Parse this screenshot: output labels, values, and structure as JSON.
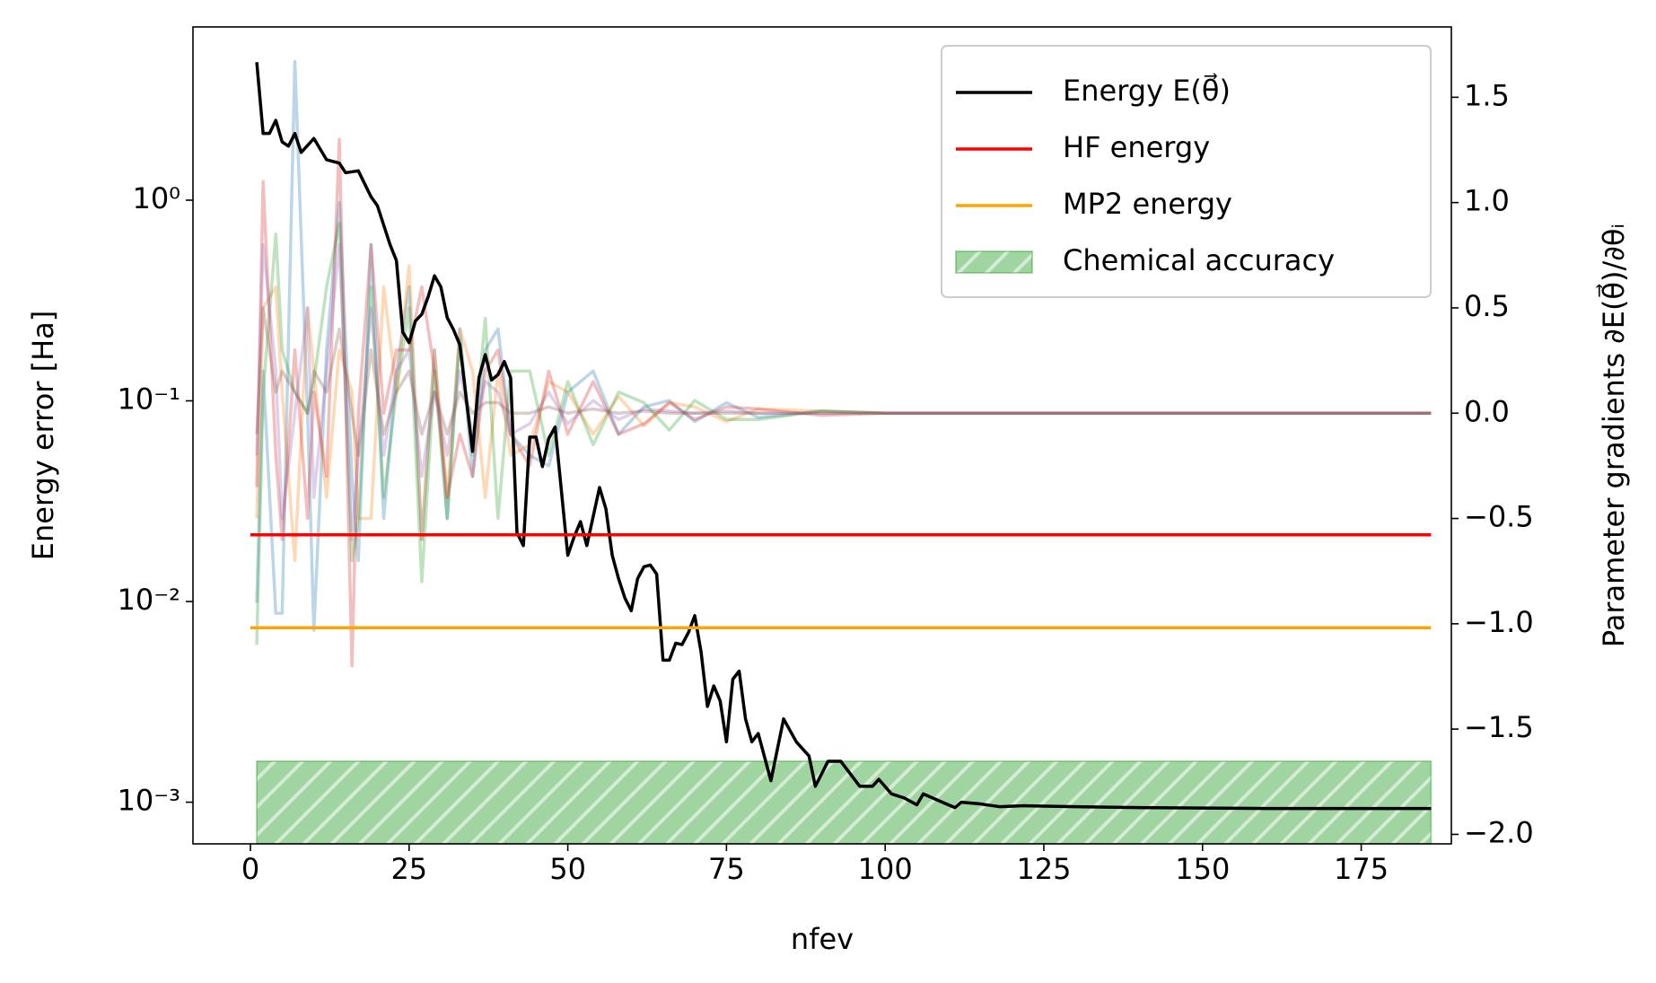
{
  "chart_data": {
    "type": "line",
    "xlabel": "nfev",
    "ylabel": "Energy error [Ha]",
    "y2label": "Parameter gradients ∂E(θ⃗)/∂θᵢ",
    "yscale": "log",
    "xlim": [
      -9.05,
      189.2
    ],
    "ylim": [
      0.00062,
      7.3
    ],
    "y2lim": [
      -2.045,
      1.834
    ],
    "xticks": [
      0,
      25,
      50,
      75,
      100,
      125,
      150,
      175
    ],
    "yticks": [
      {
        "value": 0.001,
        "label": "10⁻³"
      },
      {
        "value": 0.01,
        "label": "10⁻²"
      },
      {
        "value": 0.1,
        "label": "10⁻¹"
      },
      {
        "value": 1,
        "label": "10⁰"
      }
    ],
    "y2ticks": [
      {
        "value": -2.0,
        "label": "−2.0"
      },
      {
        "value": -1.5,
        "label": "−1.5"
      },
      {
        "value": -1.0,
        "label": "−1.0"
      },
      {
        "value": -0.5,
        "label": "−0.5"
      },
      {
        "value": 0.0,
        "label": "0.0"
      },
      {
        "value": 0.5,
        "label": "0.5"
      },
      {
        "value": 1.0,
        "label": "1.0"
      },
      {
        "value": 1.5,
        "label": "1.5"
      }
    ],
    "legend": "upper right",
    "series": [
      {
        "name": "Energy E(θ⃗)",
        "color": "#000000",
        "x": [
          1,
          2,
          3,
          4,
          5,
          6,
          7,
          8,
          10,
          12,
          14,
          15,
          17,
          19,
          20,
          22,
          23,
          24,
          25,
          26,
          27,
          28,
          29,
          30,
          31,
          32,
          33,
          35,
          36,
          37,
          38,
          39,
          40,
          41,
          42,
          43,
          44,
          45,
          46,
          47,
          48,
          50,
          51,
          52,
          53,
          55,
          56,
          57,
          58,
          59,
          60,
          61,
          62,
          63,
          64,
          65,
          66,
          67,
          68,
          69,
          70,
          71,
          72,
          73,
          74,
          75,
          76,
          77,
          78,
          79,
          80,
          82,
          84,
          86,
          88,
          89,
          91,
          93,
          96,
          98,
          99,
          101,
          103,
          105,
          106,
          109,
          111,
          112,
          115,
          118,
          122,
          130,
          140,
          160,
          186
        ],
        "values": [
          4.87,
          2.15,
          2.15,
          2.5,
          1.95,
          1.86,
          2.15,
          1.73,
          2.03,
          1.59,
          1.53,
          1.37,
          1.4,
          1.04,
          0.94,
          0.6,
          0.5,
          0.22,
          0.195,
          0.25,
          0.27,
          0.33,
          0.42,
          0.37,
          0.26,
          0.226,
          0.19,
          0.056,
          0.13,
          0.17,
          0.127,
          0.135,
          0.157,
          0.13,
          0.022,
          0.019,
          0.066,
          0.066,
          0.047,
          0.065,
          0.074,
          0.017,
          0.021,
          0.025,
          0.019,
          0.037,
          0.029,
          0.017,
          0.013,
          0.0104,
          0.009,
          0.013,
          0.0149,
          0.0152,
          0.0137,
          0.0051,
          0.0051,
          0.0062,
          0.0061,
          0.007,
          0.0085,
          0.0056,
          0.003,
          0.0038,
          0.0032,
          0.002,
          0.0041,
          0.0045,
          0.0026,
          0.002,
          0.0022,
          0.00128,
          0.0026,
          0.002,
          0.0017,
          0.0012,
          0.0016,
          0.0016,
          0.0012,
          0.0012,
          0.0013,
          0.0011,
          0.00105,
          0.00097,
          0.0011,
          0.001,
          0.00094,
          0.001,
          0.00098,
          0.00095,
          0.00096,
          0.00095,
          0.00094,
          0.00093,
          0.00093
        ]
      },
      {
        "name": "HF energy",
        "color": "#ff0000",
        "x": [
          0,
          186
        ],
        "values": [
          0.0215,
          0.0215
        ]
      },
      {
        "name": "MP2 energy",
        "color": "#ffa500",
        "x": [
          0,
          186
        ],
        "values": [
          0.0074,
          0.0074
        ]
      },
      {
        "name": "Chemical accuracy",
        "color": "#2ca02c",
        "style": "band",
        "x": [
          1,
          186
        ],
        "values": [
          0.0016,
          0.0016
        ]
      }
    ],
    "gradients": {
      "opacity": 0.3,
      "x": [
        1,
        2,
        4,
        5,
        7,
        9,
        10,
        12,
        14,
        16,
        17,
        19,
        21,
        23,
        25,
        27,
        29,
        31,
        33,
        35,
        37,
        39,
        41,
        44,
        47,
        50,
        54,
        58,
        62,
        66,
        70,
        75,
        80,
        90,
        100,
        120,
        186
      ],
      "series": [
        {
          "color": "#1f77b4",
          "axis": "y2",
          "values": [
            -0.9,
            0.2,
            -0.95,
            -0.95,
            1.67,
            0.0,
            -1.03,
            0.3,
            1.0,
            -0.3,
            -0.7,
            0.8,
            -0.5,
            0.2,
            0.6,
            -0.6,
            0.3,
            -0.5,
            0.4,
            -0.3,
            0.3,
            0.4,
            -0.1,
            -0.2,
            -0.25,
            0.1,
            0.2,
            -0.1,
            0.03,
            0.06,
            -0.04,
            0.05,
            -0.02,
            0.01,
            0.0,
            0.0,
            0.0
          ]
        },
        {
          "color": "#ff7f0e",
          "axis": "y2",
          "values": [
            -0.5,
            0.5,
            0.6,
            0.1,
            -0.7,
            0.5,
            0.2,
            -0.4,
            0.3,
            0.1,
            -0.5,
            -0.5,
            0.6,
            0.1,
            0.7,
            -0.6,
            0.3,
            -0.4,
            0.4,
            0.2,
            -0.4,
            0.2,
            -0.2,
            -0.15,
            0.15,
            0.1,
            -0.1,
            0.08,
            -0.06,
            0.05,
            0.03,
            -0.04,
            0.02,
            0.01,
            0.0,
            0.0,
            0.0
          ]
        },
        {
          "color": "#2ca02c",
          "axis": "y2",
          "values": [
            -1.1,
            0.1,
            0.85,
            0.3,
            0.1,
            0.0,
            0.15,
            0.6,
            0.9,
            -0.7,
            -0.5,
            0.6,
            -0.4,
            0.1,
            0.5,
            -0.8,
            0.2,
            -0.5,
            0.35,
            -0.2,
            0.45,
            -0.5,
            0.2,
            0.2,
            -0.2,
            0.15,
            -0.15,
            0.1,
            0.05,
            -0.08,
            0.06,
            -0.03,
            -0.03,
            0.01,
            0.0,
            0.0,
            0.0
          ]
        },
        {
          "color": "#d62728",
          "axis": "y2",
          "values": [
            -0.35,
            1.1,
            -0.2,
            -0.6,
            0.3,
            -0.5,
            0.1,
            -0.3,
            1.3,
            -1.2,
            0.0,
            0.8,
            0.0,
            0.3,
            0.3,
            0.6,
            0.2,
            -0.4,
            -0.1,
            -0.3,
            0.2,
            0.3,
            -0.1,
            -0.25,
            0.2,
            -0.1,
            0.15,
            -0.1,
            -0.05,
            0.05,
            -0.03,
            0.03,
            0.02,
            -0.01,
            0.0,
            0.0,
            0.0
          ]
        },
        {
          "color": "#9467bd",
          "axis": "y2",
          "values": [
            -0.2,
            0.8,
            0.2,
            -0.5,
            0.0,
            0.5,
            -0.4,
            0.2,
            0.8,
            -0.6,
            -0.2,
            0.5,
            -0.2,
            0.2,
            0.3,
            -0.3,
            0.1,
            -0.2,
            0.2,
            -0.1,
            0.15,
            0.1,
            -0.1,
            -0.05,
            0.1,
            -0.05,
            0.06,
            -0.03,
            0.02,
            0.01,
            0.0,
            0.01,
            0.0,
            0.0,
            0.0,
            0.0,
            0.0
          ]
        },
        {
          "color": "#8c564b",
          "axis": "y2",
          "values": [
            -0.1,
            0.5,
            0.1,
            0.2,
            0.1,
            0.0,
            0.2,
            0.1,
            0.4,
            0.0,
            -0.2,
            0.3,
            -0.1,
            0.1,
            0.2,
            -0.1,
            0.1,
            -0.1,
            0.1,
            0.0,
            0.05,
            0.05,
            0.0,
            0.0,
            0.03,
            0.0,
            0.02,
            0.0,
            0.01,
            0.0,
            0.0,
            0.0,
            0.0,
            0.0,
            0.0,
            0.0,
            0.0
          ]
        }
      ]
    }
  }
}
